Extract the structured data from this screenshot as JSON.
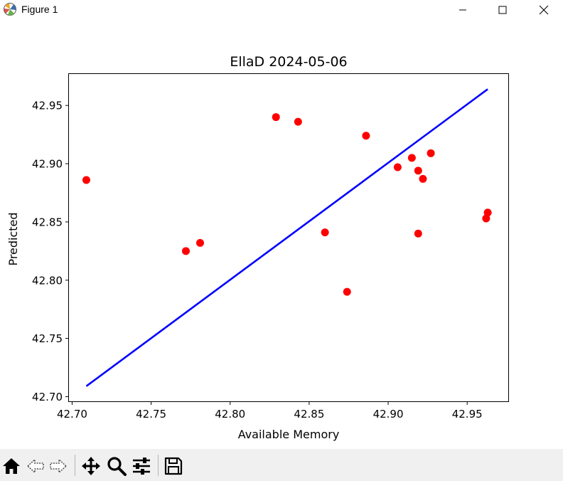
{
  "window": {
    "title": "Figure 1",
    "controls": {
      "minimize_icon": "minimize-icon",
      "maximize_icon": "maximize-icon",
      "close_icon": "close-icon"
    }
  },
  "toolbar": {
    "tools": [
      "home-icon",
      "back-arrow-icon",
      "forward-arrow-icon",
      "pan-icon",
      "zoom-icon",
      "configure-subplots-icon",
      "save-icon"
    ]
  },
  "colors": {
    "points": "#ff0000",
    "line": "#0000ff",
    "toolbar_bg": "#f0f0f0"
  },
  "chart_data": {
    "type": "scatter",
    "title": "EllaD 2024-05-06",
    "xlabel": "Available Memory",
    "ylabel": "Predicted",
    "xlim": [
      42.698,
      42.976
    ],
    "ylim": [
      42.696,
      42.977
    ],
    "xticks": [
      42.7,
      42.75,
      42.8,
      42.85,
      42.9,
      42.95
    ],
    "xtick_labels": [
      "42.70",
      "42.75",
      "42.80",
      "42.85",
      "42.90",
      "42.95"
    ],
    "yticks": [
      42.7,
      42.75,
      42.8,
      42.85,
      42.9,
      42.95
    ],
    "ytick_labels": [
      "42.70",
      "42.75",
      "42.80",
      "42.85",
      "42.90",
      "42.95"
    ],
    "grid": false,
    "series": [
      {
        "type": "scatter",
        "color": "#ff0000",
        "points": [
          {
            "x": 42.709,
            "y": 42.886
          },
          {
            "x": 42.772,
            "y": 42.825
          },
          {
            "x": 42.781,
            "y": 42.832
          },
          {
            "x": 42.829,
            "y": 42.94
          },
          {
            "x": 42.843,
            "y": 42.936
          },
          {
            "x": 42.86,
            "y": 42.841
          },
          {
            "x": 42.874,
            "y": 42.79
          },
          {
            "x": 42.886,
            "y": 42.924
          },
          {
            "x": 42.906,
            "y": 42.897
          },
          {
            "x": 42.915,
            "y": 42.905
          },
          {
            "x": 42.919,
            "y": 42.894
          },
          {
            "x": 42.919,
            "y": 42.84
          },
          {
            "x": 42.922,
            "y": 42.887
          },
          {
            "x": 42.927,
            "y": 42.909
          },
          {
            "x": 42.962,
            "y": 42.853
          },
          {
            "x": 42.963,
            "y": 42.858
          }
        ]
      },
      {
        "type": "line",
        "color": "#0000ff",
        "x": [
          42.709,
          42.963
        ],
        "y": [
          42.709,
          42.964
        ]
      }
    ]
  }
}
